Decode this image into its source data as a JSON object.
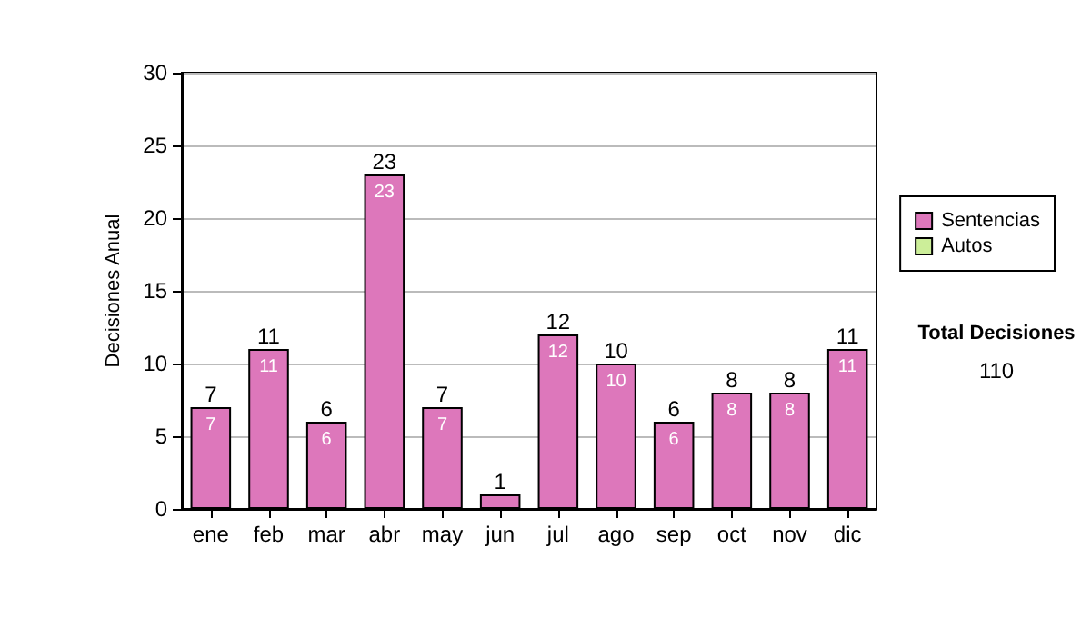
{
  "chart_data": {
    "type": "bar",
    "stacked": true,
    "ylabel": "Decisiones Anual",
    "categories": [
      "ene",
      "feb",
      "mar",
      "abr",
      "may",
      "jun",
      "jul",
      "ago",
      "sep",
      "oct",
      "nov",
      "dic"
    ],
    "series": [
      {
        "name": "Sentencias",
        "color": "#dd77bb",
        "values": [
          7,
          11,
          6,
          23,
          7,
          1,
          12,
          10,
          6,
          8,
          8,
          11
        ],
        "value_labels": [
          "7",
          "11",
          "6",
          "23",
          "7",
          null,
          "12",
          "10",
          "6",
          "8",
          "8",
          "11"
        ]
      },
      {
        "name": "Autos",
        "color": "#ccee99",
        "values": [
          0,
          0,
          0,
          0,
          0,
          0,
          0,
          0,
          0,
          0,
          0,
          0
        ]
      }
    ],
    "totals": [
      "7",
      "11",
      "6",
      "23",
      "7",
      "1",
      "12",
      "10",
      "6",
      "8",
      "8",
      "11"
    ],
    "ylim": [
      0,
      30
    ],
    "yticks": [
      0,
      5,
      10,
      15,
      20,
      25,
      30
    ],
    "grid": "y",
    "legend": "right",
    "annotations": [
      "Total Decisiones",
      "110"
    ]
  }
}
